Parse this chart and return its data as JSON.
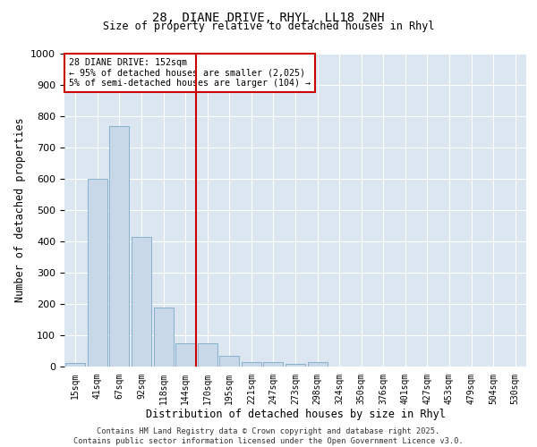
{
  "title1": "28, DIANE DRIVE, RHYL, LL18 2NH",
  "title2": "Size of property relative to detached houses in Rhyl",
  "xlabel": "Distribution of detached houses by size in Rhyl",
  "ylabel": "Number of detached properties",
  "categories": [
    "15sqm",
    "41sqm",
    "67sqm",
    "92sqm",
    "118sqm",
    "144sqm",
    "170sqm",
    "195sqm",
    "221sqm",
    "247sqm",
    "273sqm",
    "298sqm",
    "324sqm",
    "350sqm",
    "376sqm",
    "401sqm",
    "427sqm",
    "453sqm",
    "479sqm",
    "504sqm",
    "530sqm"
  ],
  "values": [
    12,
    600,
    770,
    415,
    190,
    75,
    75,
    35,
    15,
    15,
    10,
    15,
    0,
    0,
    0,
    0,
    0,
    0,
    0,
    0,
    0
  ],
  "bar_color": "#c8d8e8",
  "bar_edge_color": "#7aaac8",
  "ylim": [
    0,
    1000
  ],
  "yticks": [
    0,
    100,
    200,
    300,
    400,
    500,
    600,
    700,
    800,
    900,
    1000
  ],
  "vline_x_index": 5.5,
  "vline_color": "#cc0000",
  "annotation_text": "28 DIANE DRIVE: 152sqm\n← 95% of detached houses are smaller (2,025)\n5% of semi-detached houses are larger (104) →",
  "annotation_box_color": "#cc0000",
  "bg_color": "#dce6f0",
  "footnote": "Contains HM Land Registry data © Crown copyright and database right 2025.\nContains public sector information licensed under the Open Government Licence v3.0."
}
